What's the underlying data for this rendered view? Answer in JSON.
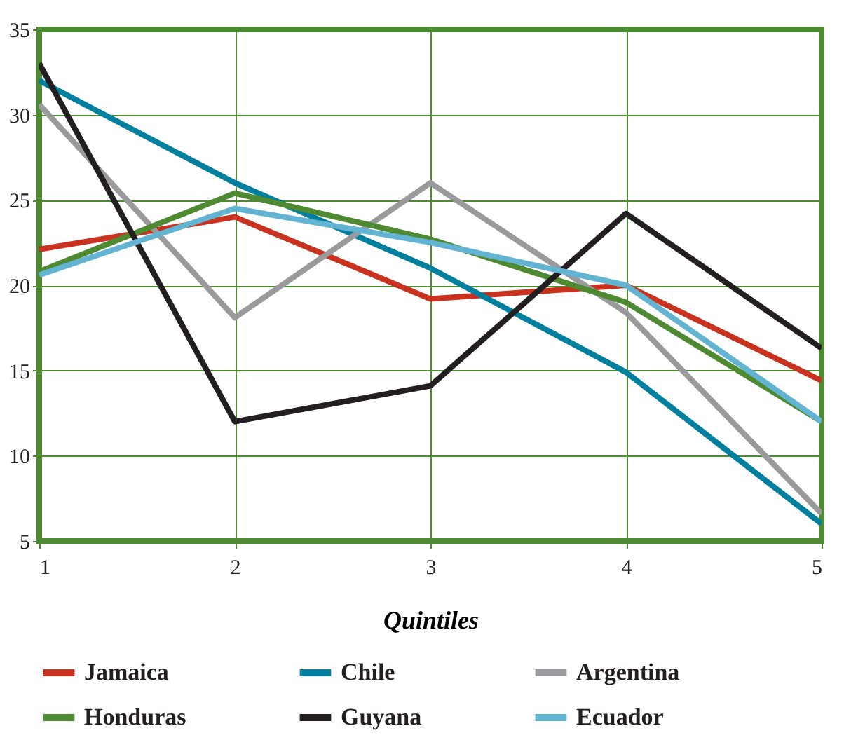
{
  "chart_data": {
    "type": "line",
    "xlabel": "Quintiles",
    "x": [
      1,
      2,
      3,
      4,
      5
    ],
    "xlim": [
      1,
      5
    ],
    "xticks": [
      1,
      2,
      3,
      4,
      5
    ],
    "ylim": [
      5,
      35
    ],
    "yticks": [
      5,
      10,
      15,
      20,
      25,
      30,
      35
    ],
    "grid": true,
    "legend": "bottom",
    "marker": "none",
    "line_style": "solid",
    "series": [
      {
        "name": "Jamaica",
        "color": "#c8321e",
        "values": [
          22.1,
          24,
          19.2,
          20,
          14.4
        ]
      },
      {
        "name": "Chile",
        "color": "#00809e",
        "values": [
          32,
          26,
          21,
          14.9,
          6
        ]
      },
      {
        "name": "Argentina",
        "color": "#9a9a9c",
        "values": [
          30.6,
          18.1,
          26,
          18.4,
          6.6
        ]
      },
      {
        "name": "Honduras",
        "color": "#4e8a32",
        "values": [
          20.8,
          25.4,
          22.7,
          19,
          12
        ]
      },
      {
        "name": "Guyana",
        "color": "#231f20",
        "values": [
          33,
          12,
          14.1,
          24.2,
          16.3
        ]
      },
      {
        "name": "Ecuador",
        "color": "#62b4d2",
        "values": [
          20.6,
          24.5,
          22.5,
          20,
          12
        ]
      }
    ]
  }
}
